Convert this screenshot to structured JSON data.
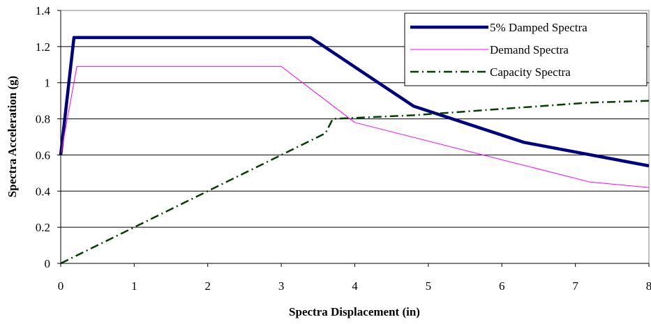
{
  "chart_data": {
    "type": "line",
    "xlabel": "Spectra Displacement (in)",
    "ylabel": "Spectra Acceleration (g)",
    "xlim": [
      0,
      8
    ],
    "ylim": [
      0,
      1.4
    ],
    "x_ticks": [
      "0",
      "1",
      "2",
      "3",
      "4",
      "5",
      "6",
      "7",
      "8"
    ],
    "y_ticks": [
      "0",
      "0.2",
      "0.4",
      "0.6",
      "0.8",
      "1",
      "1.2",
      "1.4"
    ],
    "grid": "horizontal",
    "legend_position": "top-right",
    "series": [
      {
        "name": "5% Damped Spectra",
        "color": "#000080",
        "style": "solid-thick",
        "x": [
          0,
          0.18,
          3.4,
          4.8,
          6.3,
          8
        ],
        "y": [
          0.6,
          1.25,
          1.25,
          0.87,
          0.67,
          0.54
        ]
      },
      {
        "name": "Demand Spectra",
        "color": "#ff00ff",
        "style": "solid-thin",
        "x": [
          0,
          0.22,
          3.0,
          4.0,
          7.2,
          8
        ],
        "y": [
          0.6,
          1.09,
          1.09,
          0.78,
          0.45,
          0.42
        ]
      },
      {
        "name": "Capacity Spectra",
        "color": "#004000",
        "style": "dash-dot",
        "x": [
          0,
          3.6,
          3.7,
          4.8,
          7.2,
          8
        ],
        "y": [
          0,
          0.72,
          0.8,
          0.82,
          0.89,
          0.9
        ]
      }
    ]
  }
}
